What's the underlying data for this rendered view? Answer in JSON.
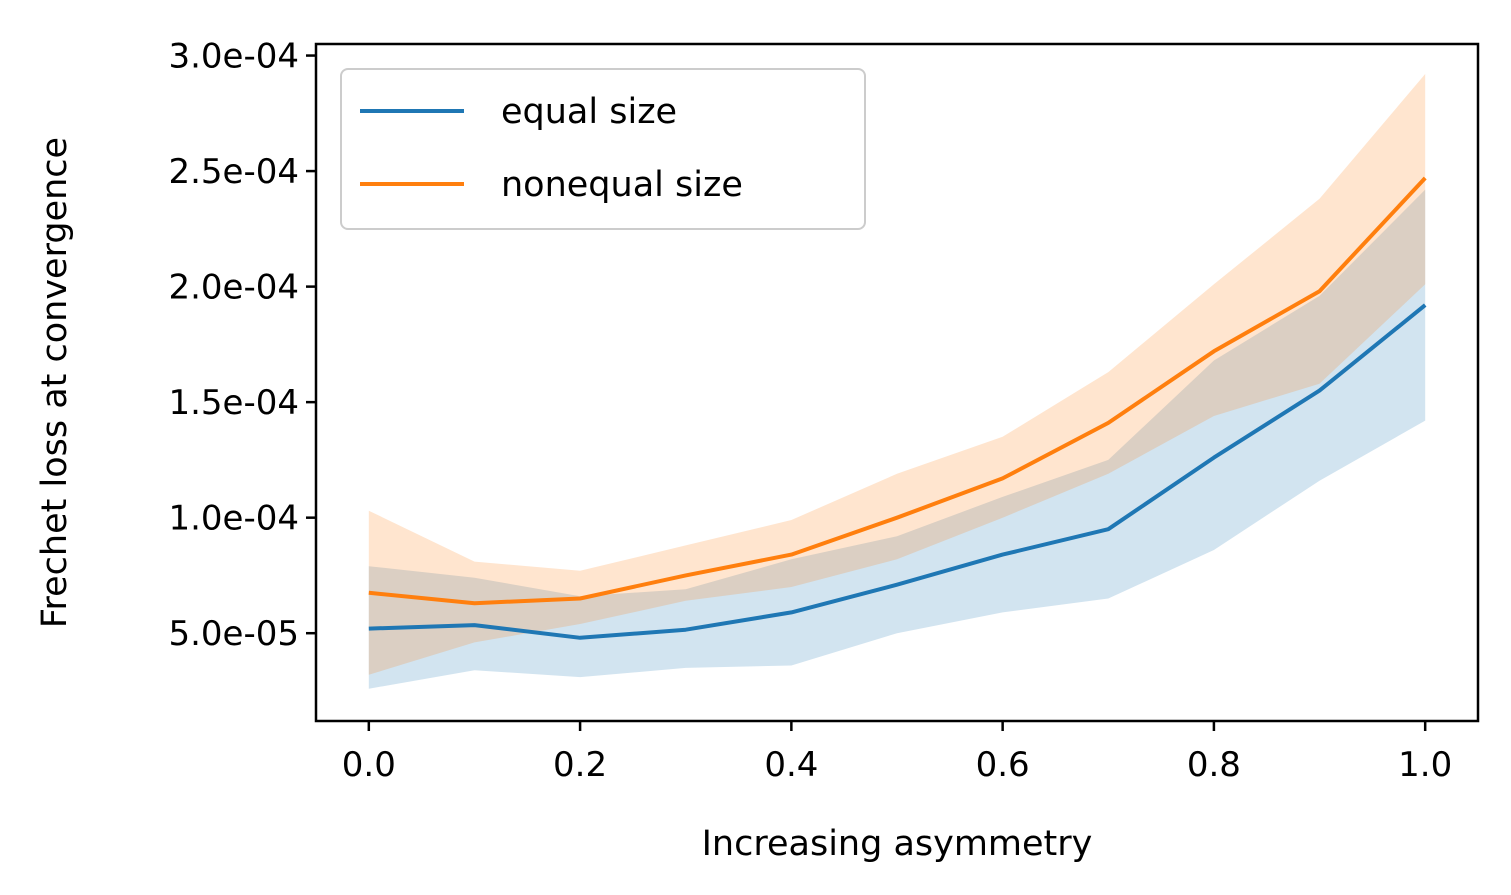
{
  "chart_data": {
    "type": "line",
    "title": "",
    "xlabel": "Increasing asymmetry",
    "ylabel": "Frechet loss at convergence",
    "xlim": [
      -0.05,
      1.05
    ],
    "ylim": [
      1.2e-05,
      0.000305
    ],
    "xticks": [
      0.0,
      0.2,
      0.4,
      0.6,
      0.8,
      1.0
    ],
    "xtick_labels": [
      "0.0",
      "0.2",
      "0.4",
      "0.6",
      "0.8",
      "1.0"
    ],
    "yticks": [
      5e-05,
      0.0001,
      0.00015,
      0.0002,
      0.00025,
      0.0003
    ],
    "ytick_labels": [
      "5.0e-05",
      "1.0e-04",
      "1.5e-04",
      "2.0e-04",
      "2.5e-04",
      "3.0e-04"
    ],
    "legend_position": "upper-left",
    "x": [
      0.0,
      0.1,
      0.2,
      0.3,
      0.4,
      0.5,
      0.6,
      0.7,
      0.8,
      0.9,
      1.0
    ],
    "series": [
      {
        "name": "equal size",
        "color": "#1f77b4",
        "values": [
          5.2e-05,
          5.35e-05,
          4.8e-05,
          5.15e-05,
          5.9e-05,
          7.1e-05,
          8.4e-05,
          9.5e-05,
          0.000126,
          0.000155,
          0.000192
        ],
        "lower": [
          2.6e-05,
          3.4e-05,
          3.1e-05,
          3.5e-05,
          3.6e-05,
          5e-05,
          5.9e-05,
          6.5e-05,
          8.6e-05,
          0.000116,
          0.000142
        ],
        "upper": [
          7.9e-05,
          7.4e-05,
          6.6e-05,
          6.9e-05,
          8.2e-05,
          9.2e-05,
          0.000109,
          0.000125,
          0.000168,
          0.000196,
          0.000242
        ]
      },
      {
        "name": "nonequal size",
        "color": "#ff7f0e",
        "values": [
          6.75e-05,
          6.3e-05,
          6.5e-05,
          7.5e-05,
          8.4e-05,
          0.0001,
          0.000117,
          0.000141,
          0.000172,
          0.000198,
          0.000247
        ],
        "lower": [
          3.2e-05,
          4.6e-05,
          5.4e-05,
          6.4e-05,
          7e-05,
          8.2e-05,
          0.0001,
          0.000119,
          0.000144,
          0.000158,
          0.000201
        ],
        "upper": [
          0.000103,
          8.1e-05,
          7.7e-05,
          8.8e-05,
          9.9e-05,
          0.000119,
          0.000135,
          0.000163,
          0.000201,
          0.000238,
          0.000292
        ]
      }
    ]
  }
}
